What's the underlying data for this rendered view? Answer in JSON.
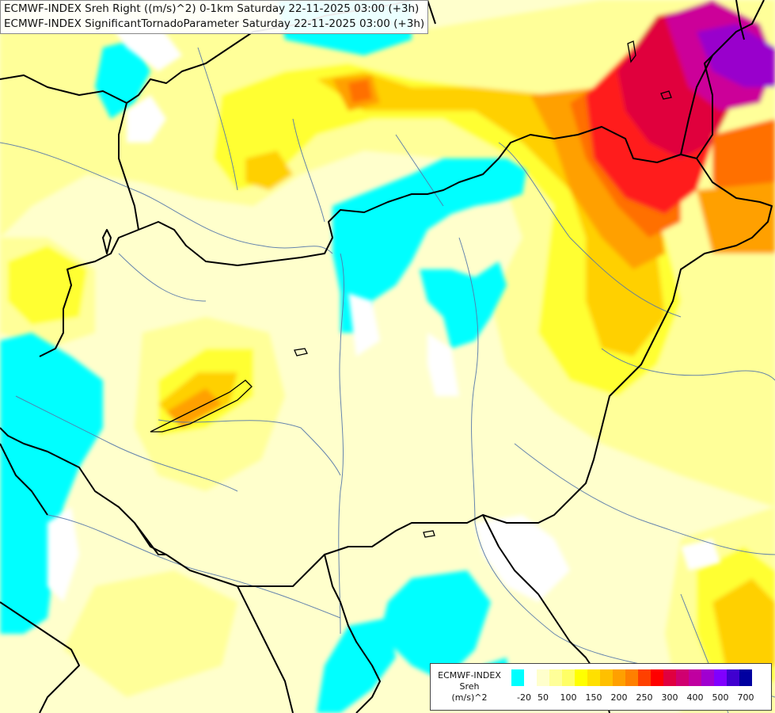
{
  "title": {
    "line1": "ECMWF-INDEX Sreh Right ((m/s)^2) 0-1km Saturday 22-11-2025 03:00 (+3h)",
    "line2": "ECMWF-INDEX SignificantTornadoParameter Saturday 22-11-2025 03:00 (+3h)"
  },
  "legend": {
    "title_line1": "ECMWF-INDEX",
    "title_line2": "Sreh",
    "title_line3": "(m/s)^2",
    "colors": [
      "#00ffff",
      "#ffffff",
      "#ffffcc",
      "#ffff99",
      "#ffff66",
      "#ffff00",
      "#ffe000",
      "#ffc000",
      "#ffa000",
      "#ff8000",
      "#ff4000",
      "#ff0000",
      "#e00040",
      "#d00070",
      "#c000a0",
      "#a000d0",
      "#8000ff",
      "#4000d0",
      "#0000a0"
    ],
    "ticks": [
      "-20",
      "50",
      "100",
      "150",
      "200",
      "250",
      "300",
      "400",
      "500",
      "700"
    ]
  },
  "map": {
    "palette": {
      "cyan": "#00ffff",
      "white": "#ffffff",
      "pale": "#ffffcc",
      "light": "#ffff99",
      "yellow": "#ffff33",
      "gold": "#ffd000",
      "orange": "#ffa000",
      "dark_orange": "#ff7000",
      "red": "#ff1a1a",
      "crimson": "#e0003c",
      "magenta": "#cc0099",
      "purple": "#9900cc",
      "indigo": "#5500cc",
      "border": "#000000",
      "river": "#5577aa"
    }
  }
}
